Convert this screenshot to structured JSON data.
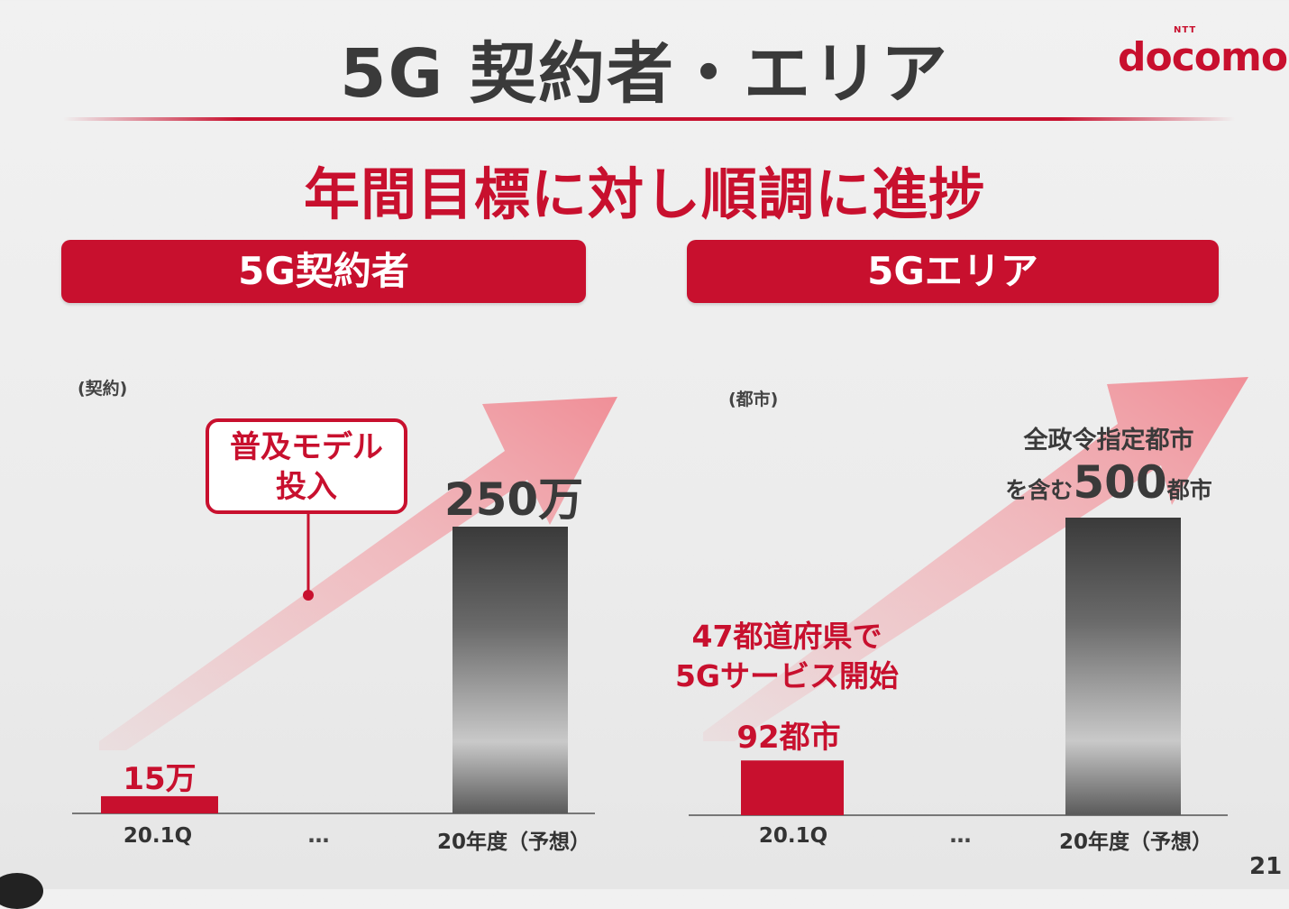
{
  "title": "5G 契約者・エリア",
  "logo": {
    "brand_small": "NTT",
    "brand": "docomo"
  },
  "headline": "年間目標に対し順調に進捗",
  "page_number": "21",
  "colors": {
    "accent": "#c8102e",
    "bar_forecast_dark": "#3a3a3a",
    "bar_forecast_light": "#cfcfcf",
    "arrow": "#f2a7ad"
  },
  "left_panel": {
    "header": "5G契約者",
    "unit": "(契約)",
    "callout": {
      "line1": "普及モデル",
      "line2": "投入"
    },
    "ellipsis": "…",
    "value_labels": [
      "15万",
      "250万"
    ]
  },
  "right_panel": {
    "header": "5Gエリア",
    "unit": "(都市)",
    "note_left": {
      "line1": "47都道府県で",
      "line2": "5Gサービス開始"
    },
    "note_right": {
      "line1": "全政令指定都市",
      "prefix": "を含む",
      "number": "500",
      "suffix": "都市"
    },
    "ellipsis": "…",
    "value_labels": [
      "92都市",
      "500都市"
    ]
  },
  "chart_data": [
    {
      "type": "bar",
      "ylabel": "(契約)",
      "categories": [
        "20.1Q",
        "20年度（予想）"
      ],
      "values": [
        150000,
        2500000
      ],
      "ylim": [
        0,
        2500000
      ],
      "grid": false
    },
    {
      "type": "bar",
      "ylabel": "(都市)",
      "categories": [
        "20.1Q",
        "20年度（予想）"
      ],
      "values": [
        92,
        500
      ],
      "ylim": [
        0,
        500
      ],
      "grid": false
    }
  ]
}
